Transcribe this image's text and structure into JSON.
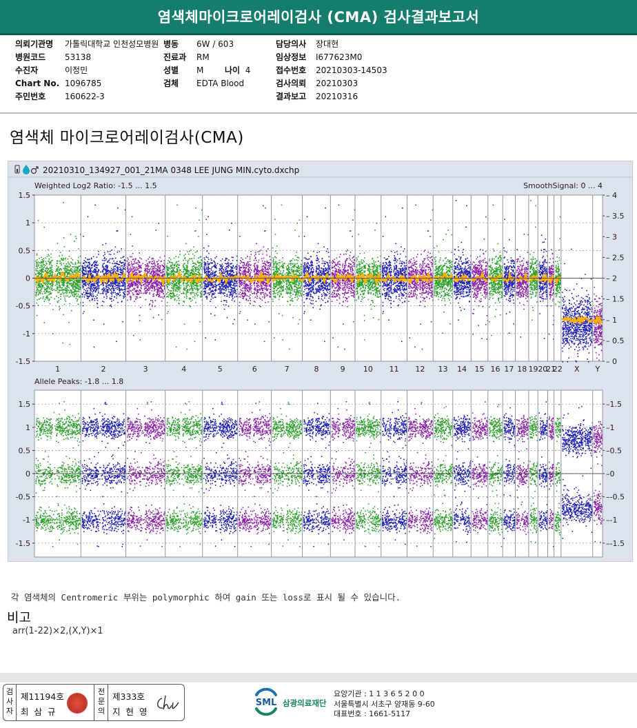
{
  "header": {
    "title": "염색체마이크로어레이검사 (CMA) 검사결과보고서"
  },
  "info": {
    "col1": [
      {
        "label": "의뢰기관명",
        "value": "가톨릭대학교 인천성모병원"
      },
      {
        "label": "병원코드",
        "value": "53138"
      },
      {
        "label": "수진자",
        "value": "이정민"
      },
      {
        "label": "Chart No.",
        "value": "1096785"
      },
      {
        "label": "주민번호",
        "value": "160622-3"
      }
    ],
    "col2": [
      {
        "label": "병동",
        "value": "6W / 603"
      },
      {
        "label": "진료과",
        "value": "RM"
      },
      {
        "label": "성별",
        "value": "M"
      },
      {
        "label": "검체",
        "value": "EDTA Blood"
      }
    ],
    "age": {
      "label": "나이",
      "value": "4"
    },
    "col3": [
      {
        "label": "담당의사",
        "value": "장대현"
      },
      {
        "label": "임상정보",
        "value": "I677623M0"
      },
      {
        "label": "접수번호",
        "value": "20210303-14503"
      },
      {
        "label": "검사의뢰",
        "value": "20210303"
      },
      {
        "label": "결과보고",
        "value": "20210316"
      }
    ]
  },
  "section_title": "염색체 마이크로어레이검사(CMA)",
  "chart_data": {
    "type": "scatter",
    "file_name": "20210310_134927_001_21MA 0348 LEE JUNG MIN.cyto.dxchp",
    "icons": [
      "battery-icon",
      "drop-icon",
      "male-icon"
    ],
    "panels": [
      {
        "name": "log2",
        "title": "Weighted Log2 Ratio: -1.5 ... 1.5",
        "right_title": "SmoothSignal: 0 ... 4",
        "ylim": [
          -1.5,
          1.5
        ],
        "yticks": [
          "1.5",
          "1",
          "0.5",
          "0",
          "-0.5",
          "-1",
          "-1.5"
        ],
        "right_ylim": [
          0,
          4
        ],
        "right_yticks": [
          "4",
          "3.5",
          "3",
          "2.5",
          "2",
          "1.5",
          "1",
          "0.5",
          "0"
        ]
      },
      {
        "name": "allele",
        "title": "Allele Peaks: -1.8 ... 1.8",
        "ylim": [
          -1.8,
          1.8
        ],
        "yticks": [
          "1.5",
          "1",
          "0.5",
          "0",
          "-0.5",
          "-1",
          "-1.5"
        ],
        "right_yticks": [
          "1.5",
          "1",
          "0.5",
          "0",
          "-0.5",
          "-1",
          "-1.5"
        ]
      }
    ],
    "chromosomes": [
      {
        "label": "1",
        "copy_number": 2,
        "smooth_signal": 2.0
      },
      {
        "label": "2",
        "copy_number": 2,
        "smooth_signal": 2.0
      },
      {
        "label": "3",
        "copy_number": 2,
        "smooth_signal": 2.0
      },
      {
        "label": "4",
        "copy_number": 2,
        "smooth_signal": 2.0
      },
      {
        "label": "5",
        "copy_number": 2,
        "smooth_signal": 2.0
      },
      {
        "label": "6",
        "copy_number": 2,
        "smooth_signal": 2.0
      },
      {
        "label": "7",
        "copy_number": 2,
        "smooth_signal": 2.0
      },
      {
        "label": "8",
        "copy_number": 2,
        "smooth_signal": 2.0
      },
      {
        "label": "9",
        "copy_number": 2,
        "smooth_signal": 2.0
      },
      {
        "label": "10",
        "copy_number": 2,
        "smooth_signal": 2.0
      },
      {
        "label": "11",
        "copy_number": 2,
        "smooth_signal": 2.0
      },
      {
        "label": "12",
        "copy_number": 2,
        "smooth_signal": 2.0
      },
      {
        "label": "13",
        "copy_number": 2,
        "smooth_signal": 2.0
      },
      {
        "label": "14",
        "copy_number": 2,
        "smooth_signal": 2.0
      },
      {
        "label": "15",
        "copy_number": 2,
        "smooth_signal": 2.0
      },
      {
        "label": "16",
        "copy_number": 2,
        "smooth_signal": 2.0
      },
      {
        "label": "17",
        "copy_number": 2,
        "smooth_signal": 2.0
      },
      {
        "label": "18",
        "copy_number": 2,
        "smooth_signal": 2.0
      },
      {
        "label": "19",
        "copy_number": 2,
        "smooth_signal": 2.0
      },
      {
        "label": "20",
        "copy_number": 2,
        "smooth_signal": 2.0
      },
      {
        "label": "21",
        "copy_number": 2,
        "smooth_signal": 2.0
      },
      {
        "label": "22",
        "copy_number": 2,
        "smooth_signal": 2.0
      },
      {
        "label": "X",
        "copy_number": 1,
        "smooth_signal": 1.0
      },
      {
        "label": "Y",
        "copy_number": 1,
        "smooth_signal": 1.0
      }
    ],
    "colors": [
      "#2aa02a",
      "#1f1fb4",
      "#8b1fa8"
    ],
    "smooth_color": "#ffb000"
  },
  "note": "각 염색체의 Centromeric 부위는 polymorphic 하여 gain 또는 loss로 표시 될 수 있습니다.",
  "remarks": {
    "title": "비고",
    "text": "arr(1-22)×2,(X,Y)×1"
  },
  "footer": {
    "label_a": "검사자",
    "label_b": "전문의",
    "examiner_license": "제11194호",
    "examiner_name": "최 삼 규",
    "specialist_license": "제333호",
    "specialist_name": "지 현 영",
    "signature": "Chi",
    "logo_text": "SML",
    "org_name": "삼광의료재단",
    "org_lines": [
      "요양기관 : 1 1 3 6 5 2 0 0",
      "서울특별시 서초구 양재동 9-60",
      "대표번호 : 1661-5117"
    ]
  }
}
